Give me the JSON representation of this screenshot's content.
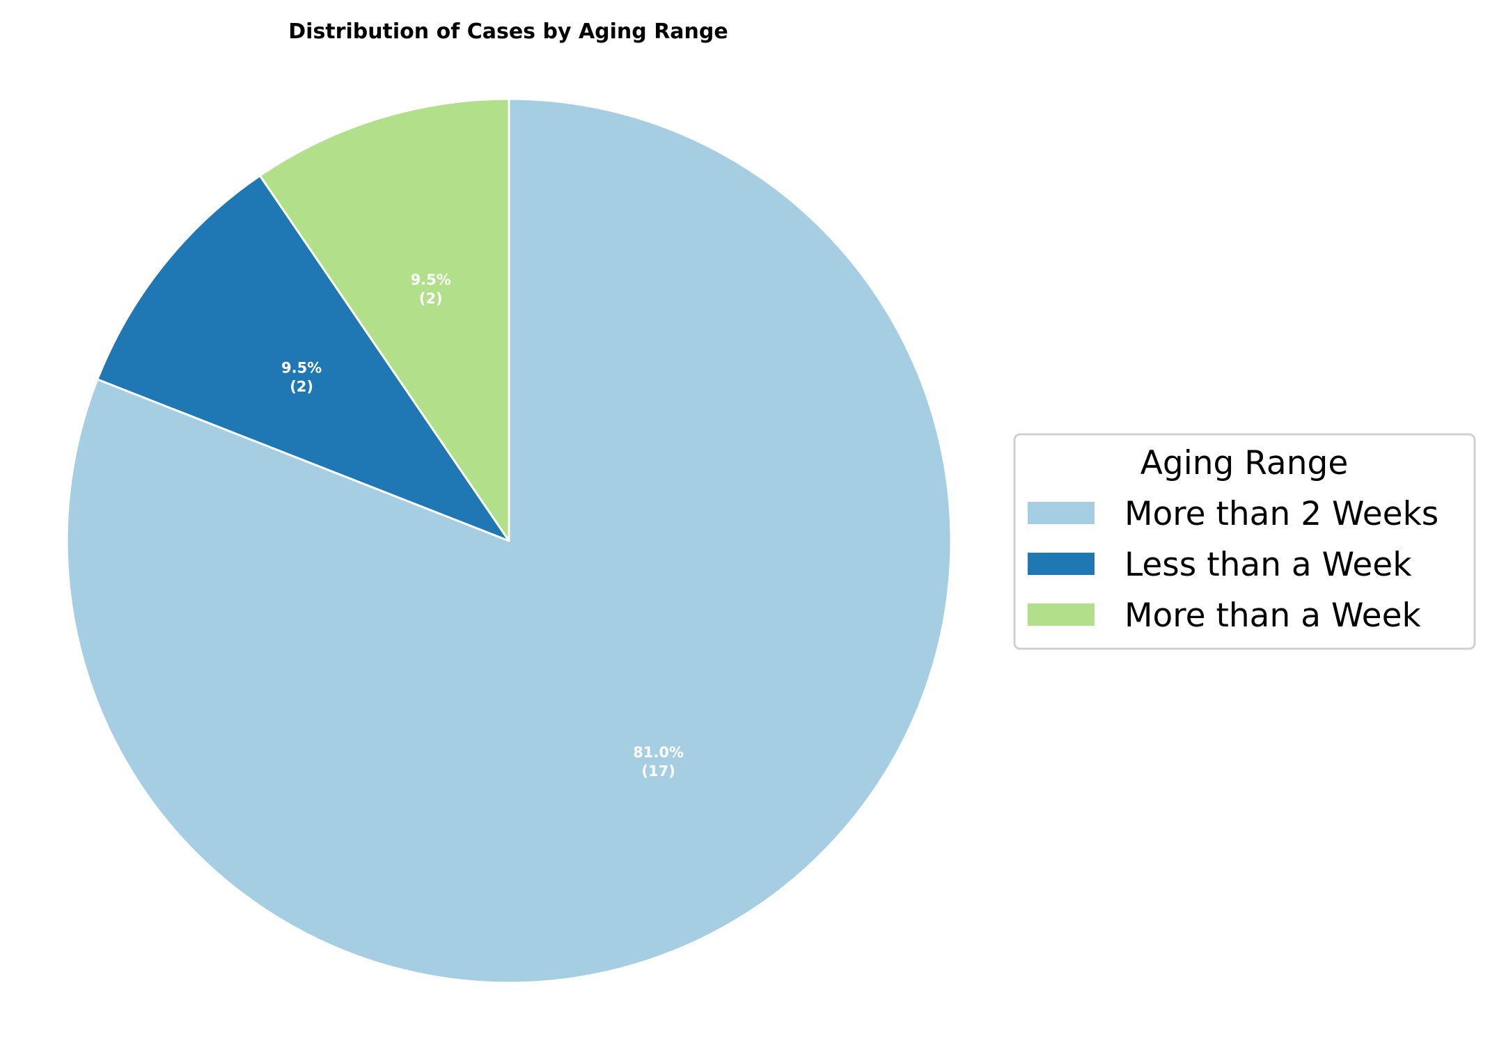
{
  "chart_data": {
    "type": "pie",
    "title": "Distribution of Cases by Aging Range",
    "start_angle_deg": 90,
    "direction": "clockwise",
    "slices": [
      {
        "label": "More than 2 Weeks",
        "value": 17,
        "percent_label": "81.0%",
        "count_label": "(17)",
        "color": "#a6cee3"
      },
      {
        "label": "Less than a Week",
        "value": 2,
        "percent_label": "9.5%",
        "count_label": "(2)",
        "color": "#1f78b4"
      },
      {
        "label": "More than a Week",
        "value": 2,
        "percent_label": "9.5%",
        "count_label": "(2)",
        "color": "#b2df8a"
      }
    ],
    "legend": {
      "title": "Aging Range",
      "placement": "center-right",
      "entries": [
        "More than 2 Weeks",
        "Less than a Week",
        "More than a Week"
      ]
    },
    "edge_color": "#ffffff"
  }
}
